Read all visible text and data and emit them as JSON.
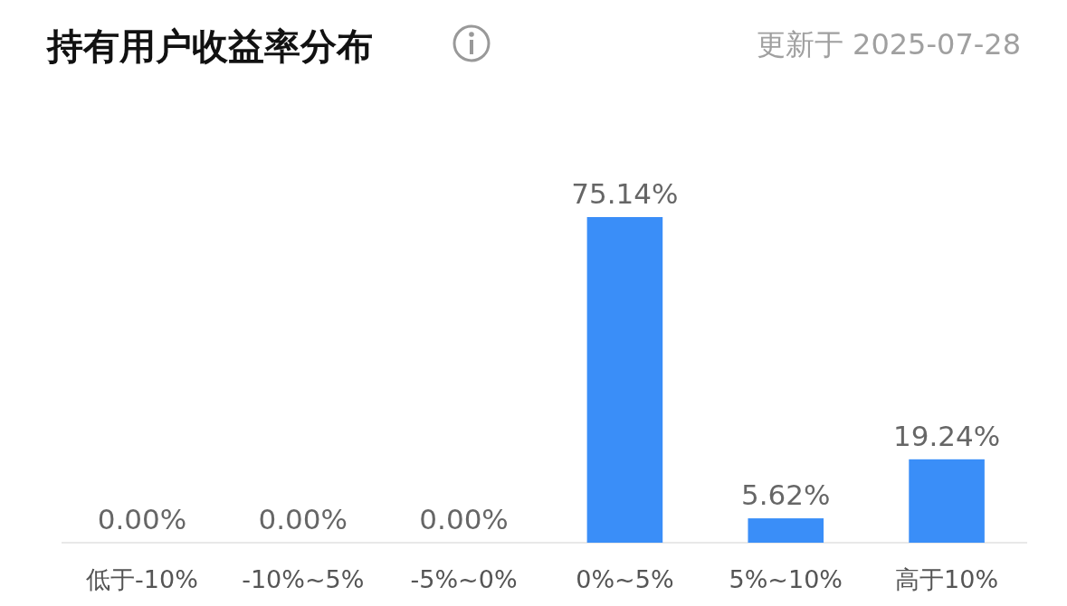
{
  "chart_data": {
    "type": "bar",
    "title": "持有用户收益率分布",
    "subtitle": "更新于 2025-07-28",
    "categories": [
      "低于-10%",
      "-10%~5%",
      "-5%~0%",
      "0%~5%",
      "5%~10%",
      "高于10%"
    ],
    "values": [
      0,
      0,
      0,
      75.14,
      5.62,
      19.24
    ],
    "value_labels": [
      "0.00%",
      "0.00%",
      "0.00%",
      "75.14%",
      "5.62%",
      "19.24%"
    ],
    "color": "#3a8ef8"
  }
}
